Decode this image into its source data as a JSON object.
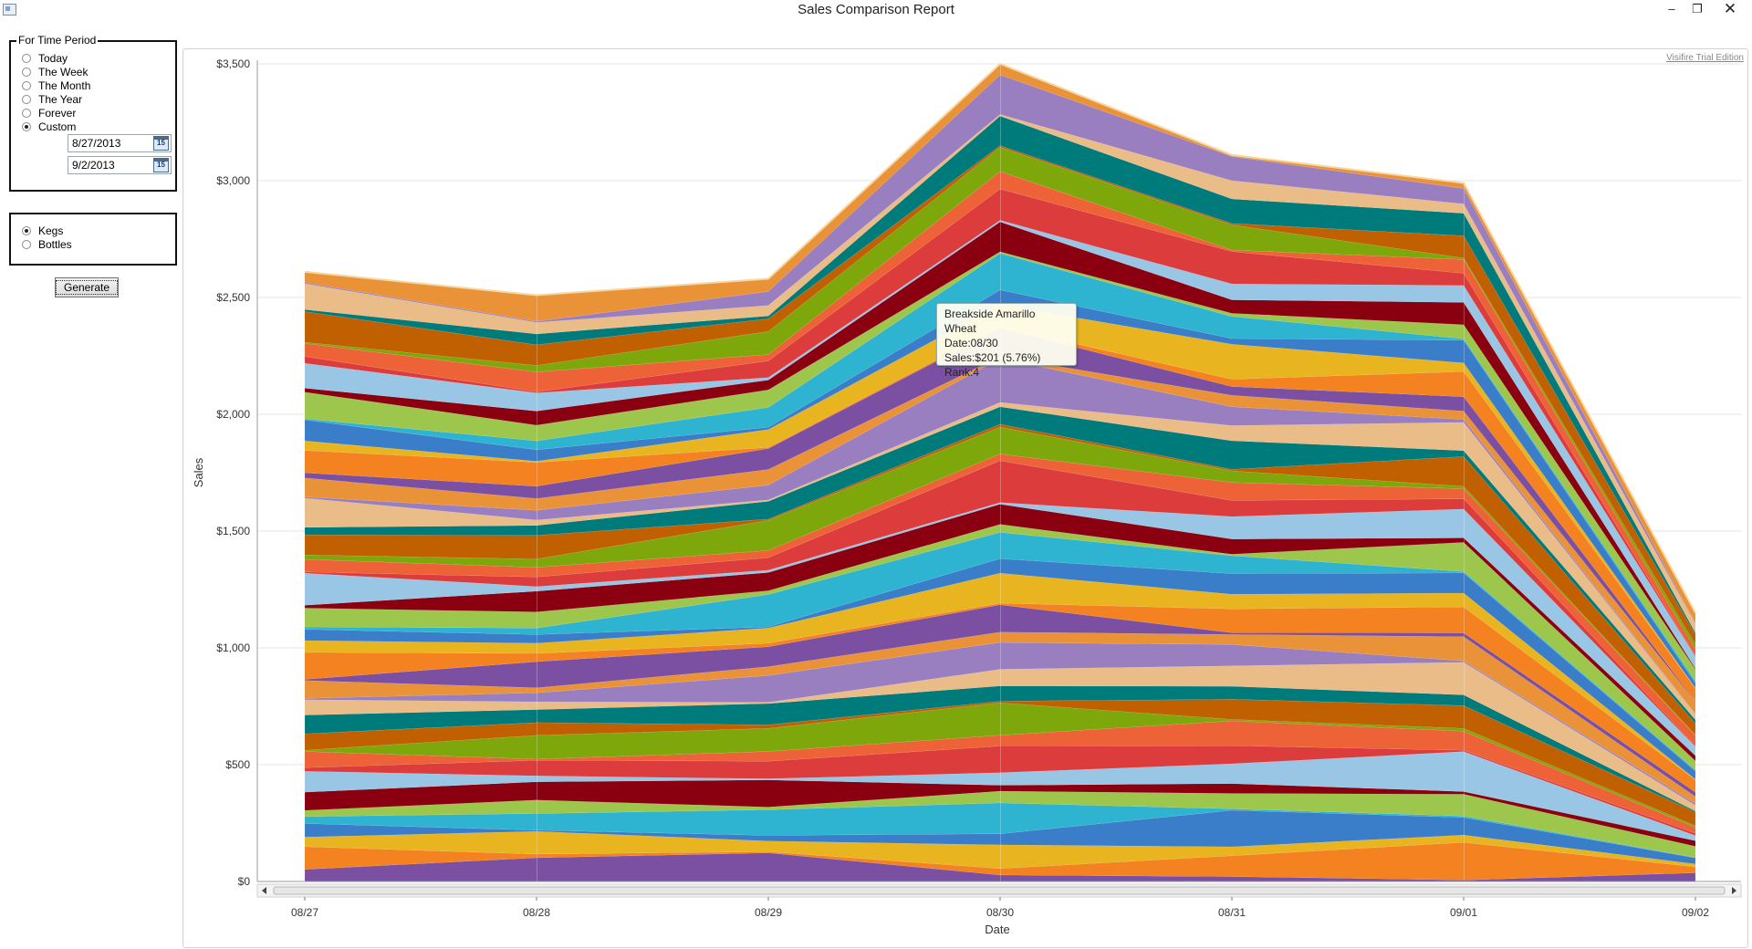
{
  "window": {
    "title": "Sales Comparison Report",
    "minimize": "–",
    "maximize": "❐",
    "close": "✕"
  },
  "time_period": {
    "legend": "For Time Period",
    "options": [
      "Today",
      "The Week",
      "The Month",
      "The Year",
      "Forever",
      "Custom"
    ],
    "selected": "Custom",
    "start_date": "8/27/2013",
    "end_date": "9/2/2013",
    "calendar_icon_label": "15"
  },
  "product_type": {
    "options": [
      "Kegs",
      "Bottles"
    ],
    "selected": "Kegs"
  },
  "generate_label": "Generate",
  "watermark": "Visifire Trial Edition",
  "tooltip": {
    "line1": "Breakside Amarillo Wheat",
    "line2": "Date:08/30",
    "line3": "Sales:$201 (5.76%)",
    "line4": "Rank:4"
  },
  "chart_data": {
    "type": "area",
    "stacked": true,
    "categories": [
      "08/27",
      "08/28",
      "08/29",
      "08/30",
      "08/31",
      "09/01",
      "09/02"
    ],
    "totals": [
      2610,
      2510,
      2580,
      3500,
      3110,
      2990,
      1150
    ],
    "xlabel": "Date",
    "ylabel": "Sales",
    "ylim": [
      0,
      3500
    ],
    "yticks": [
      "$0",
      "$500",
      "$1,000",
      "$1,500",
      "$2,000",
      "$2,500",
      "$3,000",
      "$3,500"
    ],
    "ytick_values": [
      0,
      500,
      1000,
      1500,
      2000,
      2500,
      3000,
      3500
    ],
    "grid": true,
    "palette": [
      "#7b4fa2",
      "#f58220",
      "#e8b520",
      "#3a7dc9",
      "#2eb4d1",
      "#9dc64c",
      "#8b0010",
      "#9ac6e6",
      "#dc3c3c",
      "#ee6237",
      "#7da70a",
      "#c06000",
      "#007b7b",
      "#e9bc88",
      "#9a7fc0",
      "#ea9238"
    ]
  }
}
